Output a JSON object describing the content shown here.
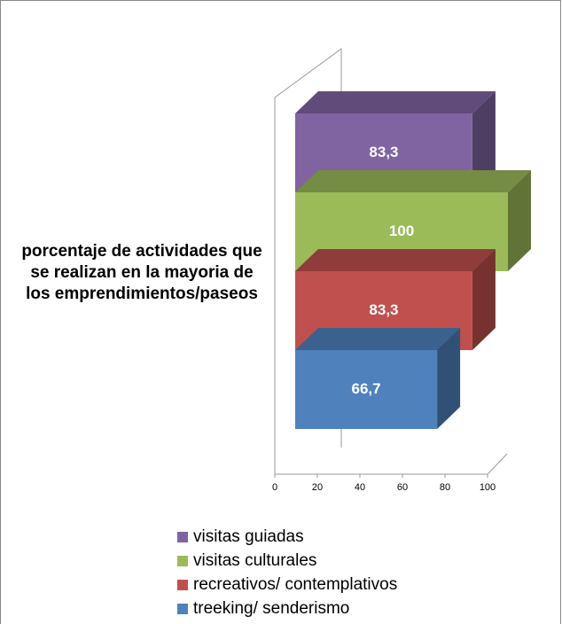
{
  "chart_data": {
    "type": "bar3d",
    "categories": [
      "porcentaje de actividades que se realizan en la mayoria de los emprendimientos/paseos"
    ],
    "series": [
      {
        "name": "visitas guiadas",
        "color": "#8064a2",
        "values": [
          83.3
        ],
        "value_labels": [
          "83,3"
        ]
      },
      {
        "name": "visitas culturales",
        "color": "#9bbb59",
        "values": [
          100
        ],
        "value_labels": [
          "100"
        ]
      },
      {
        "name": "recreativos/ contemplativos",
        "color": "#c0504d",
        "values": [
          83.3
        ],
        "value_labels": [
          "83,3"
        ]
      },
      {
        "name": "treeking/ senderismo",
        "color": "#4f81bd",
        "values": [
          66.7
        ],
        "value_labels": [
          "66,7"
        ]
      }
    ],
    "xlim": [
      0,
      100
    ],
    "xticks": [
      0,
      20,
      40,
      60,
      80,
      100
    ],
    "legend": "bottom"
  }
}
